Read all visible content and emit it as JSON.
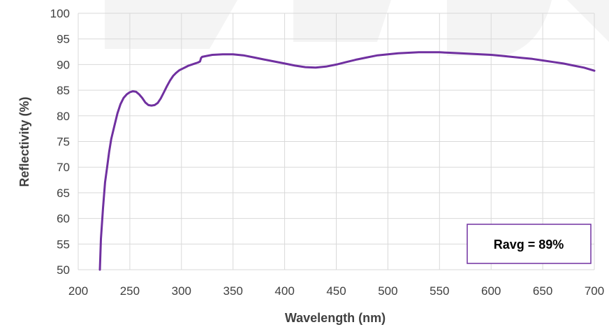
{
  "chart_data": {
    "type": "line",
    "title": "",
    "xlabel": "Wavelength (nm)",
    "ylabel": "Reflectivity (%)",
    "xlim": [
      200,
      700
    ],
    "ylim": [
      50,
      100
    ],
    "x_ticks": [
      200,
      250,
      300,
      350,
      400,
      450,
      500,
      550,
      600,
      650,
      700
    ],
    "y_ticks": [
      50,
      55,
      60,
      65,
      70,
      75,
      80,
      85,
      90,
      95,
      100
    ],
    "grid": true,
    "legend": "none",
    "series": [
      {
        "color": "#7030A0",
        "x": [
          221,
          222,
          224,
          226,
          228,
          230,
          232,
          235,
          238,
          241,
          244,
          247,
          250,
          253,
          256,
          259,
          262,
          265,
          268,
          271,
          274,
          277,
          280,
          283,
          286,
          289,
          292,
          295,
          298,
          301,
          304,
          307,
          310,
          313,
          316,
          318,
          319,
          320,
          325,
          330,
          340,
          350,
          360,
          370,
          380,
          390,
          400,
          410,
          420,
          430,
          440,
          450,
          460,
          470,
          480,
          490,
          500,
          510,
          520,
          530,
          540,
          550,
          560,
          570,
          580,
          590,
          600,
          610,
          620,
          630,
          640,
          650,
          660,
          670,
          680,
          690,
          700
        ],
        "y": [
          50,
          56,
          62,
          67,
          70,
          73,
          75.5,
          78,
          80.5,
          82.3,
          83.5,
          84.2,
          84.6,
          84.8,
          84.7,
          84.2,
          83.5,
          82.6,
          82.1,
          82.0,
          82.1,
          82.5,
          83.4,
          84.6,
          85.8,
          86.9,
          87.8,
          88.4,
          88.9,
          89.2,
          89.5,
          89.8,
          90.0,
          90.2,
          90.4,
          90.6,
          91.3,
          91.5,
          91.7,
          91.9,
          92.0,
          92.0,
          91.8,
          91.4,
          91.0,
          90.6,
          90.2,
          89.8,
          89.5,
          89.4,
          89.6,
          90.0,
          90.5,
          91.0,
          91.4,
          91.8,
          92.0,
          92.2,
          92.3,
          92.4,
          92.4,
          92.4,
          92.3,
          92.2,
          92.1,
          92.0,
          91.9,
          91.7,
          91.5,
          91.3,
          91.1,
          90.8,
          90.5,
          90.2,
          89.8,
          89.4,
          88.8
        ]
      }
    ],
    "annotations": [
      {
        "text": "Ravg = 89%",
        "position": "bottom-right",
        "border_color": "#7030A0"
      }
    ]
  }
}
